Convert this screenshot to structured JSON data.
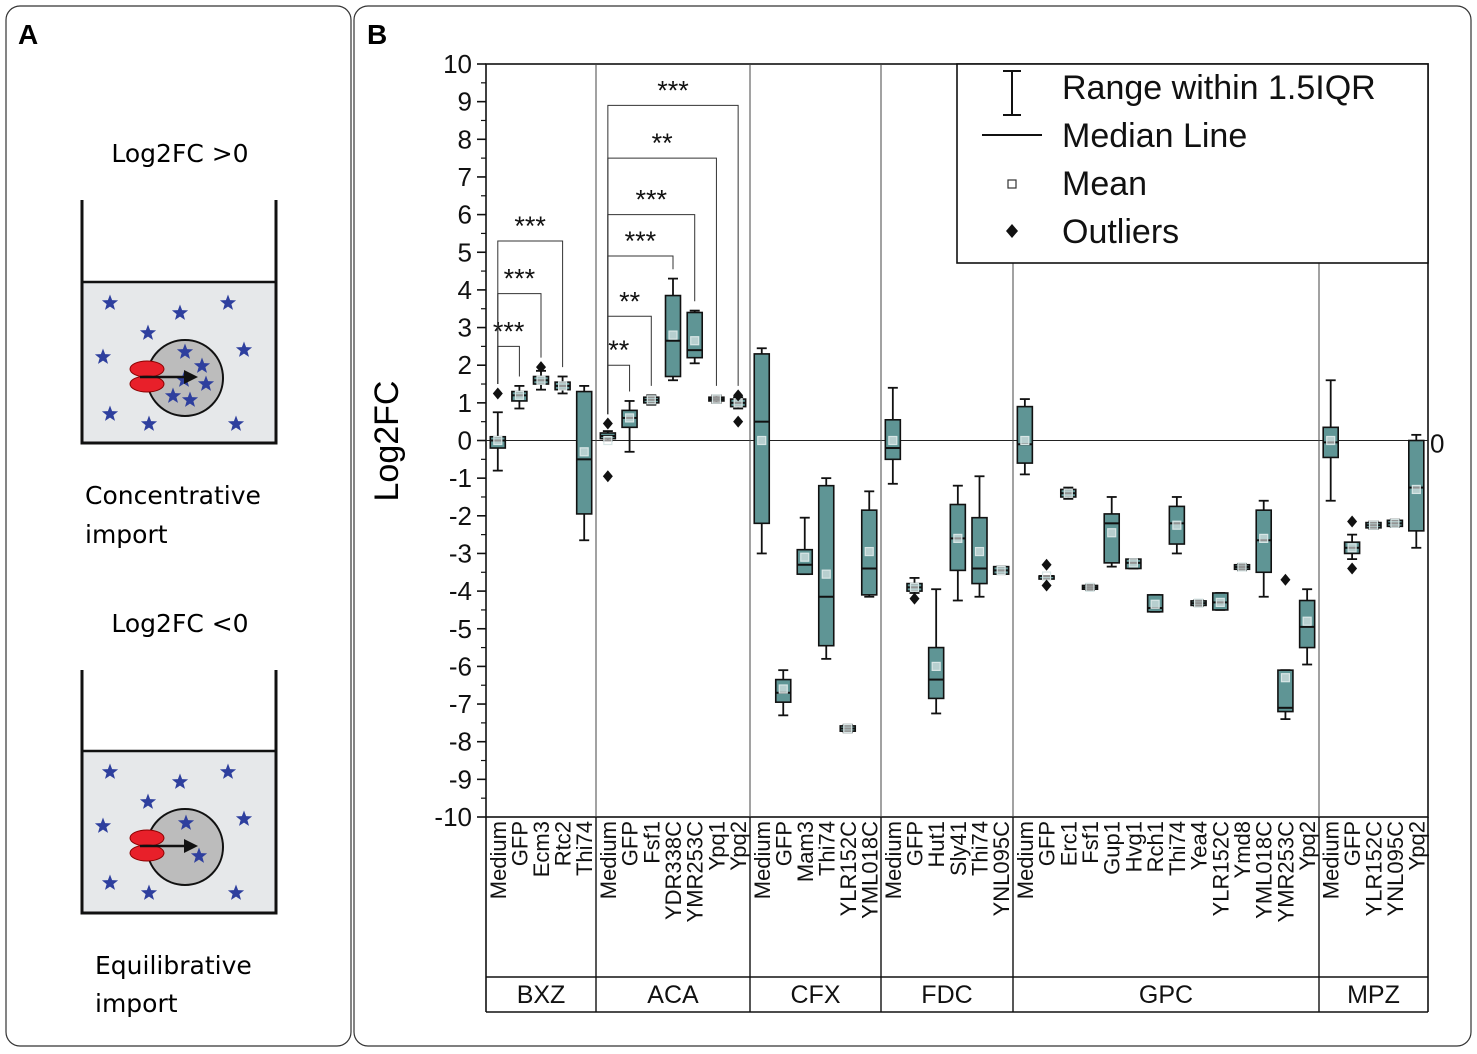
{
  "panel_a": {
    "label": "A",
    "top": {
      "caption": "Log2FC >0",
      "label_line1": "Concentrative",
      "label_line2": "import"
    },
    "bottom": {
      "caption": "Log2FC <0",
      "label_line1": "Equilibrative",
      "label_line2": "import"
    }
  },
  "panel_b": {
    "label": "B"
  },
  "colors": {
    "box_fill": "#5f9595",
    "star": "#2e3f9e",
    "transporter": "#e8202a",
    "vessel_fill": "#e6e8ea",
    "cell_fill": "#bcbcbc"
  },
  "chart_data": {
    "type": "box",
    "ylabel": "Log2FC",
    "ylim": [
      -10,
      10
    ],
    "yticks": [
      -10,
      -9,
      -8,
      -7,
      -6,
      -5,
      -4,
      -3,
      -2,
      -1,
      0,
      1,
      2,
      3,
      4,
      5,
      6,
      7,
      8,
      9,
      10
    ],
    "zero_line_label": "0",
    "legend": {
      "position": "top-right",
      "items": [
        {
          "symbol": "range",
          "label": "Range within 1.5IQR"
        },
        {
          "symbol": "median",
          "label": "Median Line"
        },
        {
          "symbol": "mean",
          "label": "Mean"
        },
        {
          "symbol": "outlier",
          "label": "Outliers"
        }
      ]
    },
    "groups": [
      {
        "name": "BXZ",
        "categories": [
          {
            "name": "Medium",
            "q1": -0.2,
            "median": 0,
            "q3": 0.1,
            "wlo": -0.8,
            "whi": 0.75,
            "mean": 0,
            "outliers": [
              1.25
            ]
          },
          {
            "name": "GFP",
            "q1": 1.05,
            "median": 1.2,
            "q3": 1.3,
            "wlo": 0.85,
            "whi": 1.45,
            "mean": 1.2,
            "outliers": []
          },
          {
            "name": "Ecm3",
            "q1": 1.5,
            "median": 1.6,
            "q3": 1.7,
            "wlo": 1.35,
            "whi": 1.85,
            "mean": 1.6,
            "outliers": [
              1.95
            ]
          },
          {
            "name": "Rtc2",
            "q1": 1.35,
            "median": 1.45,
            "q3": 1.55,
            "wlo": 1.25,
            "whi": 1.7,
            "mean": 1.45,
            "outliers": []
          },
          {
            "name": "Thi74",
            "q1": -1.95,
            "median": -0.5,
            "q3": 1.3,
            "wlo": -2.65,
            "whi": 1.45,
            "mean": -0.3,
            "outliers": []
          }
        ]
      },
      {
        "name": "ACA",
        "categories": [
          {
            "name": "Medium",
            "q1": 0.05,
            "median": 0.12,
            "q3": 0.2,
            "wlo": 0,
            "whi": 0.25,
            "mean": 0,
            "outliers": [
              0.45,
              -0.95
            ]
          },
          {
            "name": "GFP",
            "q1": 0.35,
            "median": 0.6,
            "q3": 0.8,
            "wlo": -0.3,
            "whi": 1.05,
            "mean": 0.6,
            "outliers": []
          },
          {
            "name": "Fsf1",
            "q1": 1.0,
            "median": 1.08,
            "q3": 1.15,
            "wlo": 0.95,
            "whi": 1.2,
            "mean": 1.08,
            "outliers": []
          },
          {
            "name": "YDR338C",
            "q1": 1.7,
            "median": 2.65,
            "q3": 3.85,
            "wlo": 1.6,
            "whi": 4.3,
            "mean": 2.8,
            "outliers": []
          },
          {
            "name": "YMR253C",
            "q1": 2.2,
            "median": 2.4,
            "q3": 3.4,
            "wlo": 2.05,
            "whi": 3.45,
            "mean": 2.65,
            "outliers": []
          },
          {
            "name": "Ypq1",
            "q1": 1.05,
            "median": 1.1,
            "q3": 1.15,
            "wlo": 1.0,
            "whi": 1.2,
            "mean": 1.1,
            "outliers": []
          },
          {
            "name": "Ypq2",
            "q1": 0.9,
            "median": 1.0,
            "q3": 1.1,
            "wlo": 0.85,
            "whi": 1.15,
            "mean": 1.0,
            "outliers": [
              1.2,
              0.5
            ]
          }
        ]
      },
      {
        "name": "CFX",
        "categories": [
          {
            "name": "Medium",
            "q1": -2.2,
            "median": 0.5,
            "q3": 2.3,
            "wlo": -3.0,
            "whi": 2.45,
            "mean": 0,
            "outliers": []
          },
          {
            "name": "GFP",
            "q1": -6.95,
            "median": -6.7,
            "q3": -6.35,
            "wlo": -7.3,
            "whi": -6.1,
            "mean": -6.6,
            "outliers": []
          },
          {
            "name": "Mam3",
            "q1": -3.55,
            "median": -3.3,
            "q3": -2.9,
            "wlo": -3.55,
            "whi": -2.05,
            "mean": -3.1,
            "outliers": []
          },
          {
            "name": "Thi74",
            "q1": -5.45,
            "median": -4.15,
            "q3": -1.2,
            "wlo": -5.8,
            "whi": -1.0,
            "mean": -3.55,
            "outliers": []
          },
          {
            "name": "YLR152C",
            "q1": -7.72,
            "median": -7.65,
            "q3": -7.58,
            "wlo": -7.75,
            "whi": -7.55,
            "mean": -7.65,
            "outliers": []
          },
          {
            "name": "YML018C",
            "q1": -4.1,
            "median": -3.4,
            "q3": -1.85,
            "wlo": -4.15,
            "whi": -1.35,
            "mean": -2.95,
            "outliers": []
          }
        ]
      },
      {
        "name": "FDC",
        "categories": [
          {
            "name": "Medium",
            "q1": -0.5,
            "median": -0.2,
            "q3": 0.55,
            "wlo": -1.15,
            "whi": 1.4,
            "mean": 0,
            "outliers": []
          },
          {
            "name": "GFP",
            "q1": -4.0,
            "median": -3.9,
            "q3": -3.8,
            "wlo": -4.05,
            "whi": -3.65,
            "mean": -3.9,
            "outliers": [
              -4.2
            ]
          },
          {
            "name": "Hut1",
            "q1": -6.85,
            "median": -6.35,
            "q3": -5.5,
            "wlo": -7.25,
            "whi": -3.95,
            "mean": -6.0,
            "outliers": []
          },
          {
            "name": "Sly41",
            "q1": -3.45,
            "median": -2.6,
            "q3": -1.7,
            "wlo": -4.25,
            "whi": -1.2,
            "mean": -2.6,
            "outliers": []
          },
          {
            "name": "Thi74",
            "q1": -3.8,
            "median": -3.4,
            "q3": -2.05,
            "wlo": -4.15,
            "whi": -0.95,
            "mean": -2.95,
            "outliers": []
          },
          {
            "name": "YNL095C",
            "q1": -3.55,
            "median": -3.45,
            "q3": -3.35,
            "wlo": -3.55,
            "whi": -3.35,
            "mean": -3.45,
            "outliers": []
          }
        ]
      },
      {
        "name": "GPC",
        "categories": [
          {
            "name": "Medium",
            "q1": -0.6,
            "median": -0.1,
            "q3": 0.9,
            "wlo": -0.9,
            "whi": 1.1,
            "mean": 0,
            "outliers": []
          },
          {
            "name": "GFP",
            "q1": -3.6,
            "median": -3.6,
            "q3": -3.6,
            "wlo": -3.6,
            "whi": -3.6,
            "mean": -3.6,
            "outliers": [
              -3.3,
              -3.85
            ]
          },
          {
            "name": "Erc1",
            "q1": -1.5,
            "median": -1.4,
            "q3": -1.3,
            "wlo": -1.55,
            "whi": -1.25,
            "mean": -1.4,
            "outliers": []
          },
          {
            "name": "Fsf1",
            "q1": -3.95,
            "median": -3.9,
            "q3": -3.85,
            "wlo": -3.97,
            "whi": -3.83,
            "mean": -3.9,
            "outliers": []
          },
          {
            "name": "Gup1",
            "q1": -3.25,
            "median": -2.2,
            "q3": -1.95,
            "wlo": -3.35,
            "whi": -1.5,
            "mean": -2.45,
            "outliers": []
          },
          {
            "name": "Hvg1",
            "q1": -3.4,
            "median": -3.25,
            "q3": -3.15,
            "wlo": -3.4,
            "whi": -3.15,
            "mean": -3.25,
            "outliers": []
          },
          {
            "name": "Rch1",
            "q1": -4.55,
            "median": -4.45,
            "q3": -4.1,
            "wlo": -4.55,
            "whi": -4.1,
            "mean": -4.35,
            "outliers": []
          },
          {
            "name": "Thi74",
            "q1": -2.75,
            "median": -2.2,
            "q3": -1.75,
            "wlo": -3.0,
            "whi": -1.5,
            "mean": -2.25,
            "outliers": []
          },
          {
            "name": "Yea4",
            "q1": -4.38,
            "median": -4.32,
            "q3": -4.26,
            "wlo": -4.4,
            "whi": -4.24,
            "mean": -4.32,
            "outliers": []
          },
          {
            "name": "YLR152C",
            "q1": -4.5,
            "median": -4.3,
            "q3": -4.05,
            "wlo": -4.5,
            "whi": -4.05,
            "mean": -4.3,
            "outliers": []
          },
          {
            "name": "Ymd8",
            "q1": -3.42,
            "median": -3.36,
            "q3": -3.3,
            "wlo": -3.45,
            "whi": -3.28,
            "mean": -3.36,
            "outliers": []
          },
          {
            "name": "YML018C",
            "q1": -3.5,
            "median": -2.65,
            "q3": -1.85,
            "wlo": -4.15,
            "whi": -1.6,
            "mean": -2.6,
            "outliers": []
          },
          {
            "name": "YMR253C",
            "q1": -7.2,
            "median": -7.1,
            "q3": -6.1,
            "wlo": -7.4,
            "whi": -6.1,
            "mean": -6.3,
            "outliers": [
              -3.7
            ]
          },
          {
            "name": "Ypq2",
            "q1": -5.5,
            "median": -4.95,
            "q3": -4.25,
            "wlo": -5.95,
            "whi": -3.95,
            "mean": -4.8,
            "outliers": []
          }
        ]
      },
      {
        "name": "MPZ",
        "categories": [
          {
            "name": "Medium",
            "q1": -0.45,
            "median": -0.05,
            "q3": 0.35,
            "wlo": -1.6,
            "whi": 1.6,
            "mean": 0,
            "outliers": []
          },
          {
            "name": "GFP",
            "q1": -3.0,
            "median": -2.85,
            "q3": -2.7,
            "wlo": -3.15,
            "whi": -2.5,
            "mean": -2.85,
            "outliers": [
              -2.15,
              -3.4
            ]
          },
          {
            "name": "YLR152C",
            "q1": -2.32,
            "median": -2.25,
            "q3": -2.18,
            "wlo": -2.35,
            "whi": -2.15,
            "mean": -2.25,
            "outliers": []
          },
          {
            "name": "YNL095C",
            "q1": -2.28,
            "median": -2.2,
            "q3": -2.12,
            "wlo": -2.3,
            "whi": -2.1,
            "mean": -2.2,
            "outliers": []
          },
          {
            "name": "Ypq2",
            "q1": -2.4,
            "median": -1.25,
            "q3": 0,
            "wlo": -2.85,
            "whi": 0.15,
            "mean": -1.3,
            "outliers": []
          }
        ]
      }
    ],
    "significance": [
      {
        "group": "BXZ",
        "from": "Medium",
        "to": "GFP",
        "label": "***",
        "y": 2.5
      },
      {
        "group": "BXZ",
        "from": "Medium",
        "to": "Ecm3",
        "label": "***",
        "y": 3.9
      },
      {
        "group": "BXZ",
        "from": "Medium",
        "to": "Rtc2",
        "label": "***",
        "y": 5.3
      },
      {
        "group": "ACA",
        "from": "Medium",
        "to": "GFP",
        "label": "**",
        "y": 2.0
      },
      {
        "group": "ACA",
        "from": "Medium",
        "to": "Fsf1",
        "label": "**",
        "y": 3.3
      },
      {
        "group": "ACA",
        "from": "Medium",
        "to": "YDR338C",
        "label": "***",
        "y": 4.9
      },
      {
        "group": "ACA",
        "from": "Medium",
        "to": "YMR253C",
        "label": "***",
        "y": 6.0
      },
      {
        "group": "ACA",
        "from": "Medium",
        "to": "Ypq1",
        "label": "**",
        "y": 7.5
      },
      {
        "group": "ACA",
        "from": "Medium",
        "to": "Ypq2",
        "label": "***",
        "y": 8.9
      }
    ]
  }
}
